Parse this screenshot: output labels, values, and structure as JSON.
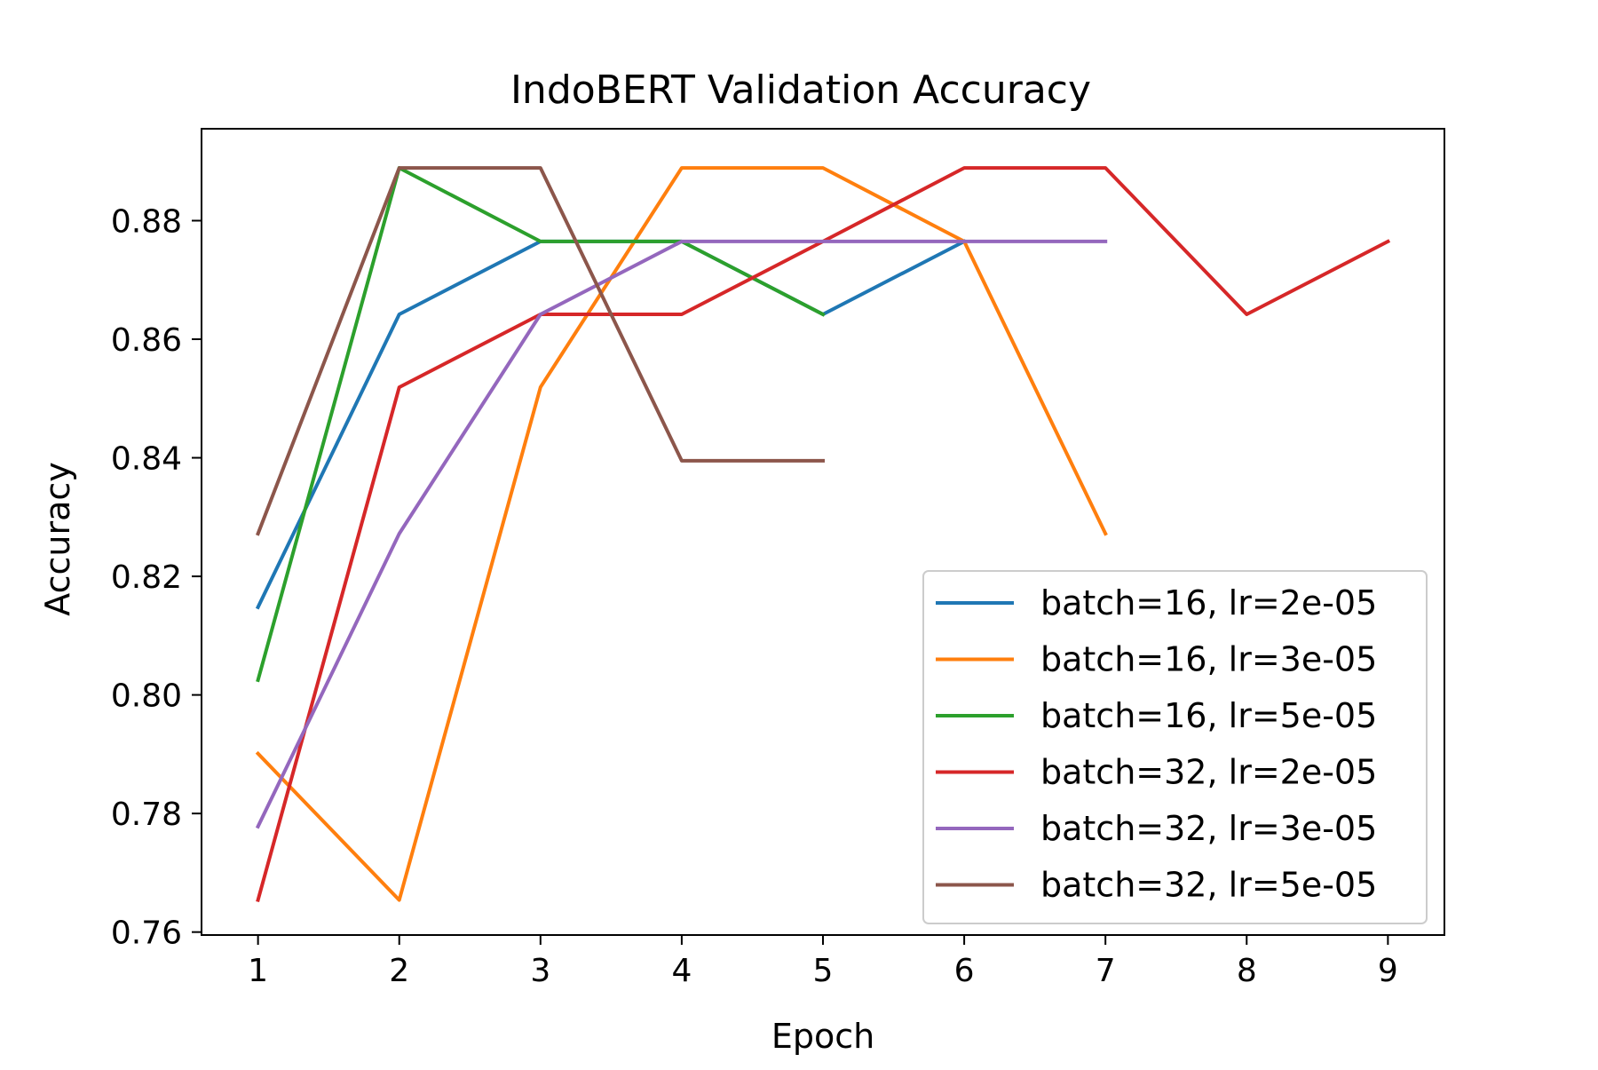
{
  "chart_data": {
    "type": "line",
    "title": "IndoBERT Validation Accuracy",
    "xlabel": "Epoch",
    "ylabel": "Accuracy",
    "xlim": [
      0.6,
      9.4
    ],
    "ylim": [
      0.7595,
      0.8955
    ],
    "xticks": [
      1,
      2,
      3,
      4,
      5,
      6,
      7,
      8,
      9
    ],
    "yticks": [
      0.76,
      0.78,
      0.8,
      0.82,
      0.84,
      0.86,
      0.88
    ],
    "ytick_labels": [
      "0.76",
      "0.78",
      "0.80",
      "0.82",
      "0.84",
      "0.86",
      "0.88"
    ],
    "grid": false,
    "legend_position": "lower-right",
    "series": [
      {
        "name": "batch=16, lr=2e-05",
        "color": "#1f77b4",
        "x": [
          1,
          2,
          3,
          4,
          5,
          6
        ],
        "y": [
          0.8148,
          0.8642,
          0.8765,
          0.8765,
          0.8642,
          0.8765
        ]
      },
      {
        "name": "batch=16, lr=3e-05",
        "color": "#ff7f0e",
        "x": [
          1,
          2,
          3,
          4,
          5,
          6,
          7
        ],
        "y": [
          0.7901,
          0.7654,
          0.8519,
          0.8889,
          0.8889,
          0.8765,
          0.8272
        ]
      },
      {
        "name": "batch=16, lr=5e-05",
        "color": "#2ca02c",
        "x": [
          1,
          2,
          3,
          4,
          5
        ],
        "y": [
          0.8025,
          0.8889,
          0.8765,
          0.8765,
          0.8642
        ]
      },
      {
        "name": "batch=32, lr=2e-05",
        "color": "#d62728",
        "x": [
          1,
          2,
          3,
          4,
          5,
          6,
          7,
          8,
          9
        ],
        "y": [
          0.7654,
          0.8519,
          0.8642,
          0.8642,
          0.8765,
          0.8889,
          0.8889,
          0.8642,
          0.8765
        ]
      },
      {
        "name": "batch=32, lr=3e-05",
        "color": "#9467bd",
        "x": [
          1,
          2,
          3,
          4,
          5,
          6,
          7
        ],
        "y": [
          0.7778,
          0.8272,
          0.8642,
          0.8765,
          0.8765,
          0.8765,
          0.8765
        ]
      },
      {
        "name": "batch=32, lr=5e-05",
        "color": "#8c564b",
        "x": [
          1,
          2,
          3,
          4,
          5
        ],
        "y": [
          0.8272,
          0.8889,
          0.8889,
          0.8395,
          0.8395
        ]
      }
    ]
  }
}
